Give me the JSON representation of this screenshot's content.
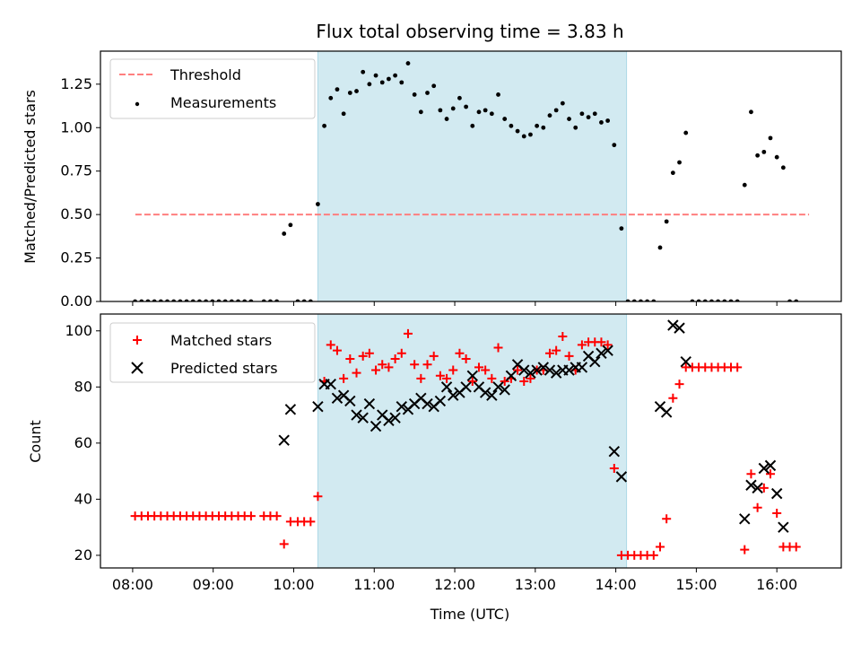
{
  "figure_title": "Flux total observing time = 3.83 h",
  "chart_data": [
    {
      "type": "scatter",
      "ylabel": "Matched/Predicted stars",
      "xlabel": "",
      "xlim": [
        7.6,
        16.8
      ],
      "ylim": [
        0,
        1.44
      ],
      "yticks": [
        "0.00",
        "0.25",
        "0.50",
        "0.75",
        "1.00",
        "1.25"
      ],
      "grid": false,
      "legend_location": "upper left",
      "observing_window": {
        "start": "10:18",
        "end": "14:08",
        "color": "#add8e6"
      },
      "threshold": {
        "name": "Threshold",
        "value": 0.5,
        "x_start": "08:02",
        "x_end": "16:24",
        "color": "#ff7f7f"
      },
      "series": [
        {
          "name": "Measurements",
          "color": "#000000",
          "points": [
            [
              8.03,
              0
            ],
            [
              8.11,
              0
            ],
            [
              8.19,
              0
            ],
            [
              8.27,
              0
            ],
            [
              8.35,
              0
            ],
            [
              8.43,
              0
            ],
            [
              8.51,
              0
            ],
            [
              8.59,
              0
            ],
            [
              8.67,
              0
            ],
            [
              8.75,
              0
            ],
            [
              8.83,
              0
            ],
            [
              8.91,
              0
            ],
            [
              8.99,
              0
            ],
            [
              9.07,
              0
            ],
            [
              9.15,
              0
            ],
            [
              9.23,
              0
            ],
            [
              9.31,
              0
            ],
            [
              9.39,
              0
            ],
            [
              9.47,
              0
            ],
            [
              9.63,
              0
            ],
            [
              9.71,
              0
            ],
            [
              9.79,
              0
            ],
            [
              9.88,
              0.39
            ],
            [
              9.96,
              0.44
            ],
            [
              10.05,
              0
            ],
            [
              10.13,
              0
            ],
            [
              10.21,
              0
            ],
            [
              10.3,
              0.56
            ],
            [
              10.38,
              1.01
            ],
            [
              10.46,
              1.17
            ],
            [
              10.54,
              1.22
            ],
            [
              10.62,
              1.08
            ],
            [
              10.7,
              1.2
            ],
            [
              10.78,
              1.21
            ],
            [
              10.86,
              1.32
            ],
            [
              10.94,
              1.25
            ],
            [
              11.02,
              1.3
            ],
            [
              11.1,
              1.26
            ],
            [
              11.18,
              1.28
            ],
            [
              11.26,
              1.3
            ],
            [
              11.34,
              1.26
            ],
            [
              11.42,
              1.37
            ],
            [
              11.5,
              1.19
            ],
            [
              11.58,
              1.09
            ],
            [
              11.66,
              1.2
            ],
            [
              11.74,
              1.24
            ],
            [
              11.82,
              1.1
            ],
            [
              11.9,
              1.05
            ],
            [
              11.98,
              1.11
            ],
            [
              12.06,
              1.17
            ],
            [
              12.14,
              1.12
            ],
            [
              12.22,
              1.01
            ],
            [
              12.3,
              1.09
            ],
            [
              12.38,
              1.1
            ],
            [
              12.46,
              1.08
            ],
            [
              12.54,
              1.19
            ],
            [
              12.62,
              1.05
            ],
            [
              12.7,
              1.01
            ],
            [
              12.78,
              0.98
            ],
            [
              12.86,
              0.95
            ],
            [
              12.94,
              0.96
            ],
            [
              13.02,
              1.01
            ],
            [
              13.1,
              1.0
            ],
            [
              13.18,
              1.07
            ],
            [
              13.26,
              1.1
            ],
            [
              13.34,
              1.14
            ],
            [
              13.42,
              1.05
            ],
            [
              13.5,
              1.0
            ],
            [
              13.58,
              1.08
            ],
            [
              13.66,
              1.06
            ],
            [
              13.74,
              1.08
            ],
            [
              13.82,
              1.03
            ],
            [
              13.9,
              1.04
            ],
            [
              13.98,
              0.9
            ],
            [
              14.07,
              0.42
            ],
            [
              14.15,
              0
            ],
            [
              14.23,
              0
            ],
            [
              14.31,
              0
            ],
            [
              14.39,
              0
            ],
            [
              14.47,
              0
            ],
            [
              14.55,
              0.31
            ],
            [
              14.63,
              0.46
            ],
            [
              14.71,
              0.74
            ],
            [
              14.79,
              0.8
            ],
            [
              14.87,
              0.97
            ],
            [
              14.95,
              0
            ],
            [
              15.03,
              0
            ],
            [
              15.11,
              0
            ],
            [
              15.19,
              0
            ],
            [
              15.27,
              0
            ],
            [
              15.35,
              0
            ],
            [
              15.43,
              0
            ],
            [
              15.51,
              0
            ],
            [
              15.6,
              0.67
            ],
            [
              15.68,
              1.09
            ],
            [
              15.76,
              0.84
            ],
            [
              15.84,
              0.86
            ],
            [
              15.92,
              0.94
            ],
            [
              16.0,
              0.83
            ],
            [
              16.08,
              0.77
            ],
            [
              16.16,
              0
            ],
            [
              16.24,
              0
            ]
          ]
        }
      ]
    },
    {
      "type": "scatter",
      "ylabel": "Count",
      "xlabel": "Time (UTC)",
      "xlim": [
        7.6,
        16.8
      ],
      "ylim": [
        15.5,
        106
      ],
      "xticks": [
        "08:00",
        "09:00",
        "10:00",
        "11:00",
        "12:00",
        "13:00",
        "14:00",
        "15:00",
        "16:00"
      ],
      "yticks": [
        "20",
        "40",
        "60",
        "80",
        "100"
      ],
      "grid": false,
      "legend_location": "upper left",
      "observing_window": {
        "start": "10:18",
        "end": "14:08",
        "color": "#add8e6"
      },
      "series": [
        {
          "name": "Matched stars",
          "color": "#ff0000",
          "marker": "plus",
          "points": [
            [
              8.03,
              34
            ],
            [
              8.11,
              34
            ],
            [
              8.19,
              34
            ],
            [
              8.27,
              34
            ],
            [
              8.35,
              34
            ],
            [
              8.43,
              34
            ],
            [
              8.51,
              34
            ],
            [
              8.59,
              34
            ],
            [
              8.67,
              34
            ],
            [
              8.75,
              34
            ],
            [
              8.83,
              34
            ],
            [
              8.91,
              34
            ],
            [
              8.99,
              34
            ],
            [
              9.07,
              34
            ],
            [
              9.15,
              34
            ],
            [
              9.23,
              34
            ],
            [
              9.31,
              34
            ],
            [
              9.39,
              34
            ],
            [
              9.47,
              34
            ],
            [
              9.63,
              34
            ],
            [
              9.71,
              34
            ],
            [
              9.79,
              34
            ],
            [
              9.88,
              24
            ],
            [
              9.96,
              32
            ],
            [
              10.05,
              32
            ],
            [
              10.13,
              32
            ],
            [
              10.21,
              32
            ],
            [
              10.3,
              41
            ],
            [
              10.38,
              82
            ],
            [
              10.46,
              95
            ],
            [
              10.54,
              93
            ],
            [
              10.62,
              83
            ],
            [
              10.7,
              90
            ],
            [
              10.78,
              85
            ],
            [
              10.86,
              91
            ],
            [
              10.94,
              92
            ],
            [
              11.02,
              86
            ],
            [
              11.1,
              88
            ],
            [
              11.18,
              87
            ],
            [
              11.26,
              90
            ],
            [
              11.34,
              92
            ],
            [
              11.42,
              99
            ],
            [
              11.5,
              88
            ],
            [
              11.58,
              83
            ],
            [
              11.66,
              88
            ],
            [
              11.74,
              91
            ],
            [
              11.82,
              84
            ],
            [
              11.9,
              83
            ],
            [
              11.98,
              86
            ],
            [
              12.06,
              92
            ],
            [
              12.14,
              90
            ],
            [
              12.22,
              82
            ],
            [
              12.3,
              87
            ],
            [
              12.38,
              86
            ],
            [
              12.46,
              83
            ],
            [
              12.54,
              94
            ],
            [
              12.62,
              82
            ],
            [
              12.7,
              83
            ],
            [
              12.78,
              86
            ],
            [
              12.86,
              82
            ],
            [
              12.94,
              83
            ],
            [
              13.02,
              86
            ],
            [
              13.1,
              86
            ],
            [
              13.18,
              92
            ],
            [
              13.26,
              93
            ],
            [
              13.34,
              98
            ],
            [
              13.42,
              91
            ],
            [
              13.5,
              86
            ],
            [
              13.58,
              95
            ],
            [
              13.66,
              96
            ],
            [
              13.74,
              96
            ],
            [
              13.82,
              96
            ],
            [
              13.9,
              95
            ],
            [
              13.98,
              51
            ],
            [
              14.07,
              20
            ],
            [
              14.15,
              20
            ],
            [
              14.23,
              20
            ],
            [
              14.31,
              20
            ],
            [
              14.39,
              20
            ],
            [
              14.47,
              20
            ],
            [
              14.55,
              23
            ],
            [
              14.63,
              33
            ],
            [
              14.71,
              76
            ],
            [
              14.79,
              81
            ],
            [
              14.87,
              87
            ],
            [
              14.95,
              87
            ],
            [
              15.03,
              87
            ],
            [
              15.11,
              87
            ],
            [
              15.19,
              87
            ],
            [
              15.27,
              87
            ],
            [
              15.35,
              87
            ],
            [
              15.43,
              87
            ],
            [
              15.51,
              87
            ],
            [
              15.6,
              22
            ],
            [
              15.68,
              49
            ],
            [
              15.76,
              37
            ],
            [
              15.84,
              44
            ],
            [
              15.92,
              49
            ],
            [
              16.0,
              35
            ],
            [
              16.08,
              23
            ],
            [
              16.16,
              23
            ],
            [
              16.24,
              23
            ]
          ]
        },
        {
          "name": "Predicted stars",
          "color": "#000000",
          "marker": "x",
          "points": [
            [
              9.88,
              61
            ],
            [
              9.96,
              72
            ],
            [
              10.3,
              73
            ],
            [
              10.38,
              81
            ],
            [
              10.46,
              81
            ],
            [
              10.54,
              76
            ],
            [
              10.62,
              77
            ],
            [
              10.7,
              75
            ],
            [
              10.78,
              70
            ],
            [
              10.86,
              69
            ],
            [
              10.94,
              74
            ],
            [
              11.02,
              66
            ],
            [
              11.1,
              70
            ],
            [
              11.18,
              68
            ],
            [
              11.26,
              69
            ],
            [
              11.34,
              73
            ],
            [
              11.42,
              72
            ],
            [
              11.5,
              74
            ],
            [
              11.58,
              76
            ],
            [
              11.66,
              74
            ],
            [
              11.74,
              73
            ],
            [
              11.82,
              75
            ],
            [
              11.9,
              80
            ],
            [
              11.98,
              77
            ],
            [
              12.06,
              78
            ],
            [
              12.14,
              80
            ],
            [
              12.22,
              84
            ],
            [
              12.3,
              80
            ],
            [
              12.38,
              78
            ],
            [
              12.46,
              77
            ],
            [
              12.54,
              80
            ],
            [
              12.62,
              79
            ],
            [
              12.7,
              84
            ],
            [
              12.78,
              88
            ],
            [
              12.86,
              86
            ],
            [
              12.94,
              85
            ],
            [
              13.02,
              86
            ],
            [
              13.1,
              87
            ],
            [
              13.18,
              86
            ],
            [
              13.26,
              85
            ],
            [
              13.34,
              86
            ],
            [
              13.42,
              86
            ],
            [
              13.5,
              87
            ],
            [
              13.58,
              87
            ],
            [
              13.66,
              91
            ],
            [
              13.74,
              89
            ],
            [
              13.82,
              92
            ],
            [
              13.9,
              93
            ],
            [
              13.98,
              57
            ],
            [
              14.07,
              48
            ],
            [
              14.55,
              73
            ],
            [
              14.63,
              71
            ],
            [
              14.71,
              102
            ],
            [
              14.79,
              101
            ],
            [
              14.87,
              89
            ],
            [
              15.6,
              33
            ],
            [
              15.68,
              45
            ],
            [
              15.76,
              44
            ],
            [
              15.84,
              51
            ],
            [
              15.92,
              52
            ],
            [
              16.0,
              42
            ],
            [
              16.08,
              30
            ]
          ]
        }
      ]
    }
  ]
}
